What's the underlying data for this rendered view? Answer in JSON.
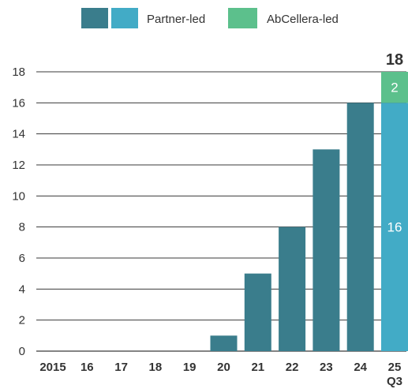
{
  "chart_data": {
    "type": "bar",
    "stacked": true,
    "title": "",
    "xlabel": "",
    "ylabel": "",
    "categories": [
      "2015",
      "16",
      "17",
      "18",
      "19",
      "20",
      "21",
      "22",
      "23",
      "24",
      "25"
    ],
    "category_sublabels": {
      "25": "Q3"
    },
    "series": [
      {
        "name": "Partner-led",
        "values": [
          0,
          0,
          0,
          0,
          0,
          1,
          5,
          8,
          13,
          16,
          16
        ]
      },
      {
        "name": "AbCellera-led",
        "values": [
          0,
          0,
          0,
          0,
          0,
          0,
          0,
          0,
          0,
          0,
          2
        ]
      }
    ],
    "ylim": [
      0,
      18
    ],
    "yticks": [
      0,
      2,
      4,
      6,
      8,
      10,
      12,
      14,
      16,
      18
    ],
    "grid": true,
    "legend_position": "top",
    "data_labels": [
      {
        "category": "25",
        "series": "Partner-led",
        "text": "16"
      },
      {
        "category": "25",
        "series": "AbCellera-led",
        "text": "2"
      }
    ],
    "totals": [
      {
        "category": "25",
        "text": "18"
      }
    ],
    "colors": {
      "partner_dark": "#3a7d8c",
      "partner_light": "#42abc6",
      "abcellera": "#5cc08c",
      "grid": "#3a3a3a",
      "text": "#333333"
    },
    "highlight_category": "25"
  }
}
